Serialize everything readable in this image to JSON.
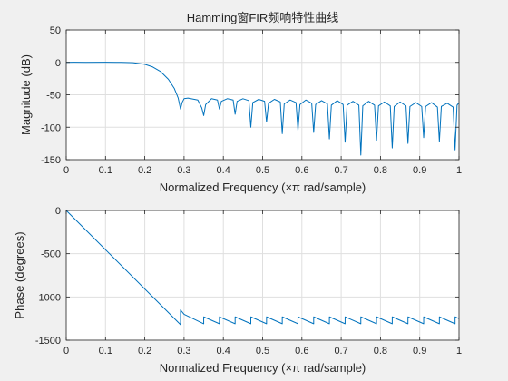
{
  "chart_data": [
    {
      "type": "line",
      "title": "Hamming窗FIR频响特性曲线",
      "xlabel": "Normalized Frequency  (×π rad/sample)",
      "ylabel": "Magnitude (dB)",
      "xlim": [
        0,
        1
      ],
      "ylim": [
        -150,
        50
      ],
      "xticks": [
        "0",
        "0.1",
        "0.2",
        "0.3",
        "0.4",
        "0.5",
        "0.6",
        "0.7",
        "0.8",
        "0.9",
        "1"
      ],
      "yticks": [
        "50",
        "0",
        "-50",
        "-100",
        "-150"
      ],
      "grid": true,
      "line_color": "#0072bd",
      "series": [
        {
          "x": [
            0,
            0.02,
            0.05,
            0.1,
            0.14,
            0.17,
            0.2,
            0.22,
            0.24,
            0.26,
            0.275,
            0.285,
            0.291,
            0.295,
            0.3,
            0.31,
            0.335,
            0.345,
            0.35,
            0.355,
            0.37,
            0.385,
            0.39,
            0.395,
            0.41,
            0.425,
            0.43,
            0.435,
            0.45,
            0.465,
            0.47,
            0.475,
            0.49,
            0.505,
            0.51,
            0.515,
            0.53,
            0.545,
            0.55,
            0.555,
            0.57,
            0.585,
            0.59,
            0.595,
            0.61,
            0.625,
            0.63,
            0.635,
            0.65,
            0.665,
            0.67,
            0.675,
            0.69,
            0.705,
            0.71,
            0.715,
            0.73,
            0.745,
            0.75,
            0.755,
            0.77,
            0.785,
            0.79,
            0.795,
            0.81,
            0.825,
            0.83,
            0.835,
            0.85,
            0.865,
            0.87,
            0.875,
            0.89,
            0.905,
            0.91,
            0.915,
            0.93,
            0.945,
            0.95,
            0.955,
            0.97,
            0.985,
            0.99,
            0.995,
            1
          ],
          "y": [
            0,
            0.1,
            0,
            0.2,
            0,
            -0.5,
            -3,
            -7,
            -14,
            -26,
            -40,
            -55,
            -72,
            -62,
            -56,
            -55,
            -58,
            -70,
            -82,
            -65,
            -56,
            -58,
            -72,
            -60,
            -56,
            -58,
            -80,
            -60,
            -56,
            -59,
            -100,
            -62,
            -57,
            -60,
            -92,
            -63,
            -57,
            -61,
            -110,
            -64,
            -58,
            -62,
            -105,
            -65,
            -58,
            -63,
            -108,
            -65,
            -59,
            -64,
            -118,
            -66,
            -59,
            -65,
            -123,
            -66,
            -60,
            -66,
            -143,
            -67,
            -60,
            -66,
            -120,
            -67,
            -61,
            -67,
            -132,
            -68,
            -61,
            -67,
            -125,
            -68,
            -62,
            -68,
            -116,
            -68,
            -62,
            -69,
            -122,
            -68,
            -63,
            -69,
            -135,
            -66,
            -62
          ]
        }
      ]
    },
    {
      "type": "line",
      "title": "",
      "xlabel": "Normalized Frequency  (×π rad/sample)",
      "ylabel": "Phase (degrees)",
      "xlim": [
        0,
        1
      ],
      "ylim": [
        -1500,
        0
      ],
      "xticks": [
        "0",
        "0.1",
        "0.2",
        "0.3",
        "0.4",
        "0.5",
        "0.6",
        "0.7",
        "0.8",
        "0.9",
        "1"
      ],
      "yticks": [
        "0",
        "-500",
        "-1000",
        "-1500"
      ],
      "grid": true,
      "line_color": "#0072bd",
      "series": [
        {
          "x": [
            0,
            0.291,
            0.291,
            0.3,
            0.35,
            0.35,
            0.39,
            0.39,
            0.43,
            0.43,
            0.47,
            0.47,
            0.51,
            0.51,
            0.55,
            0.55,
            0.59,
            0.59,
            0.63,
            0.63,
            0.67,
            0.67,
            0.71,
            0.71,
            0.75,
            0.75,
            0.79,
            0.79,
            0.83,
            0.83,
            0.87,
            0.87,
            0.91,
            0.91,
            0.95,
            0.95,
            0.99,
            0.99,
            1
          ],
          "y": [
            0,
            -1320,
            -1150,
            -1200,
            -1310,
            -1230,
            -1310,
            -1230,
            -1310,
            -1230,
            -1310,
            -1230,
            -1310,
            -1230,
            -1310,
            -1230,
            -1310,
            -1230,
            -1310,
            -1230,
            -1310,
            -1230,
            -1310,
            -1230,
            -1310,
            -1230,
            -1310,
            -1230,
            -1310,
            -1230,
            -1310,
            -1230,
            -1310,
            -1230,
            -1310,
            -1230,
            -1310,
            -1230,
            -1250
          ]
        }
      ]
    }
  ]
}
